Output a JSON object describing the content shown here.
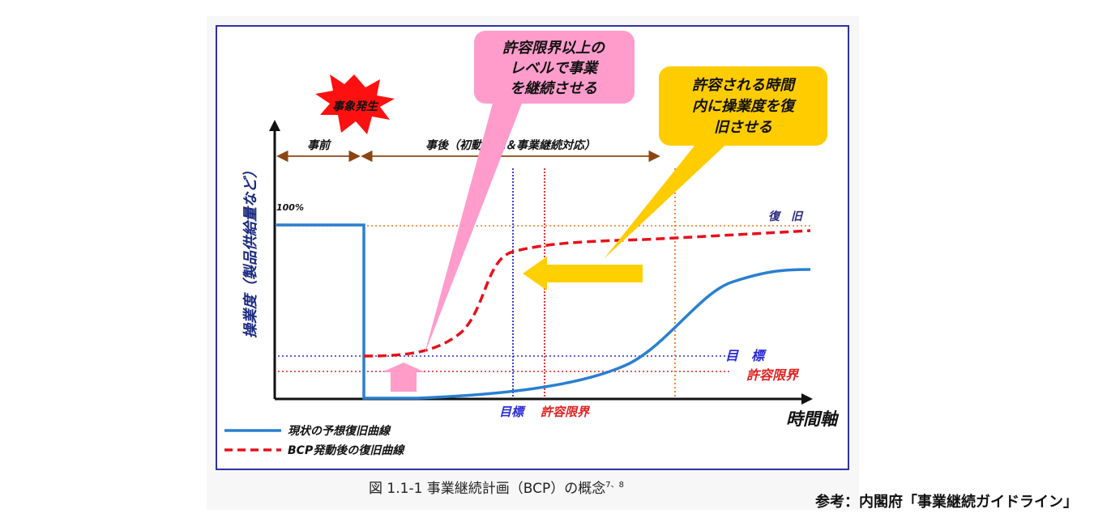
{
  "colors": {
    "frame": "#3030a8",
    "current_curve": "#2a7fd0",
    "bcp_curve": "#e8101a",
    "target_line": "#2a2ad8",
    "tolerance_line": "#e02020",
    "recovery_line": "#f07820",
    "pink_callout": "#ff9ccc",
    "yellow_callout": "#ffcc00",
    "arrow_yellow": "#ffd000",
    "arrow_pink": "#ff9cc8",
    "star": "#ff1010",
    "span_arrow": "#8b4513"
  },
  "diagram": {
    "event_label": "事象発生",
    "before_label": "事前",
    "after_label": "事後（初動対応＆事業継続対応）",
    "percent_label": "100%",
    "y_axis_label": "操業度（製品供給量など）",
    "x_axis_label": "時間軸",
    "recovery_label": "復　旧",
    "target_label": "目　標",
    "tolerance_label": "許容限界",
    "axis_target_label": "目標",
    "axis_tolerance_label": "許容限界",
    "pink_callout_lines": [
      "許容限界以上の",
      "レベルで事業",
      "を継続させる"
    ],
    "yellow_callout_lines": [
      "許容される時間",
      "内に操業度を復",
      "旧させる"
    ],
    "legend": [
      {
        "label": "現状の予想復旧曲線",
        "style": "solid",
        "color": "#2a7fd0"
      },
      {
        "label": "BCP発動後の復旧曲線",
        "style": "dashed",
        "color": "#e8101a"
      }
    ],
    "caption": "図 1.1-1  事業継続計画（BCP）の概念",
    "caption_sup": "7、8"
  },
  "footer": {
    "reference": "参考：内閣府「事業継続ガイドライン」"
  }
}
